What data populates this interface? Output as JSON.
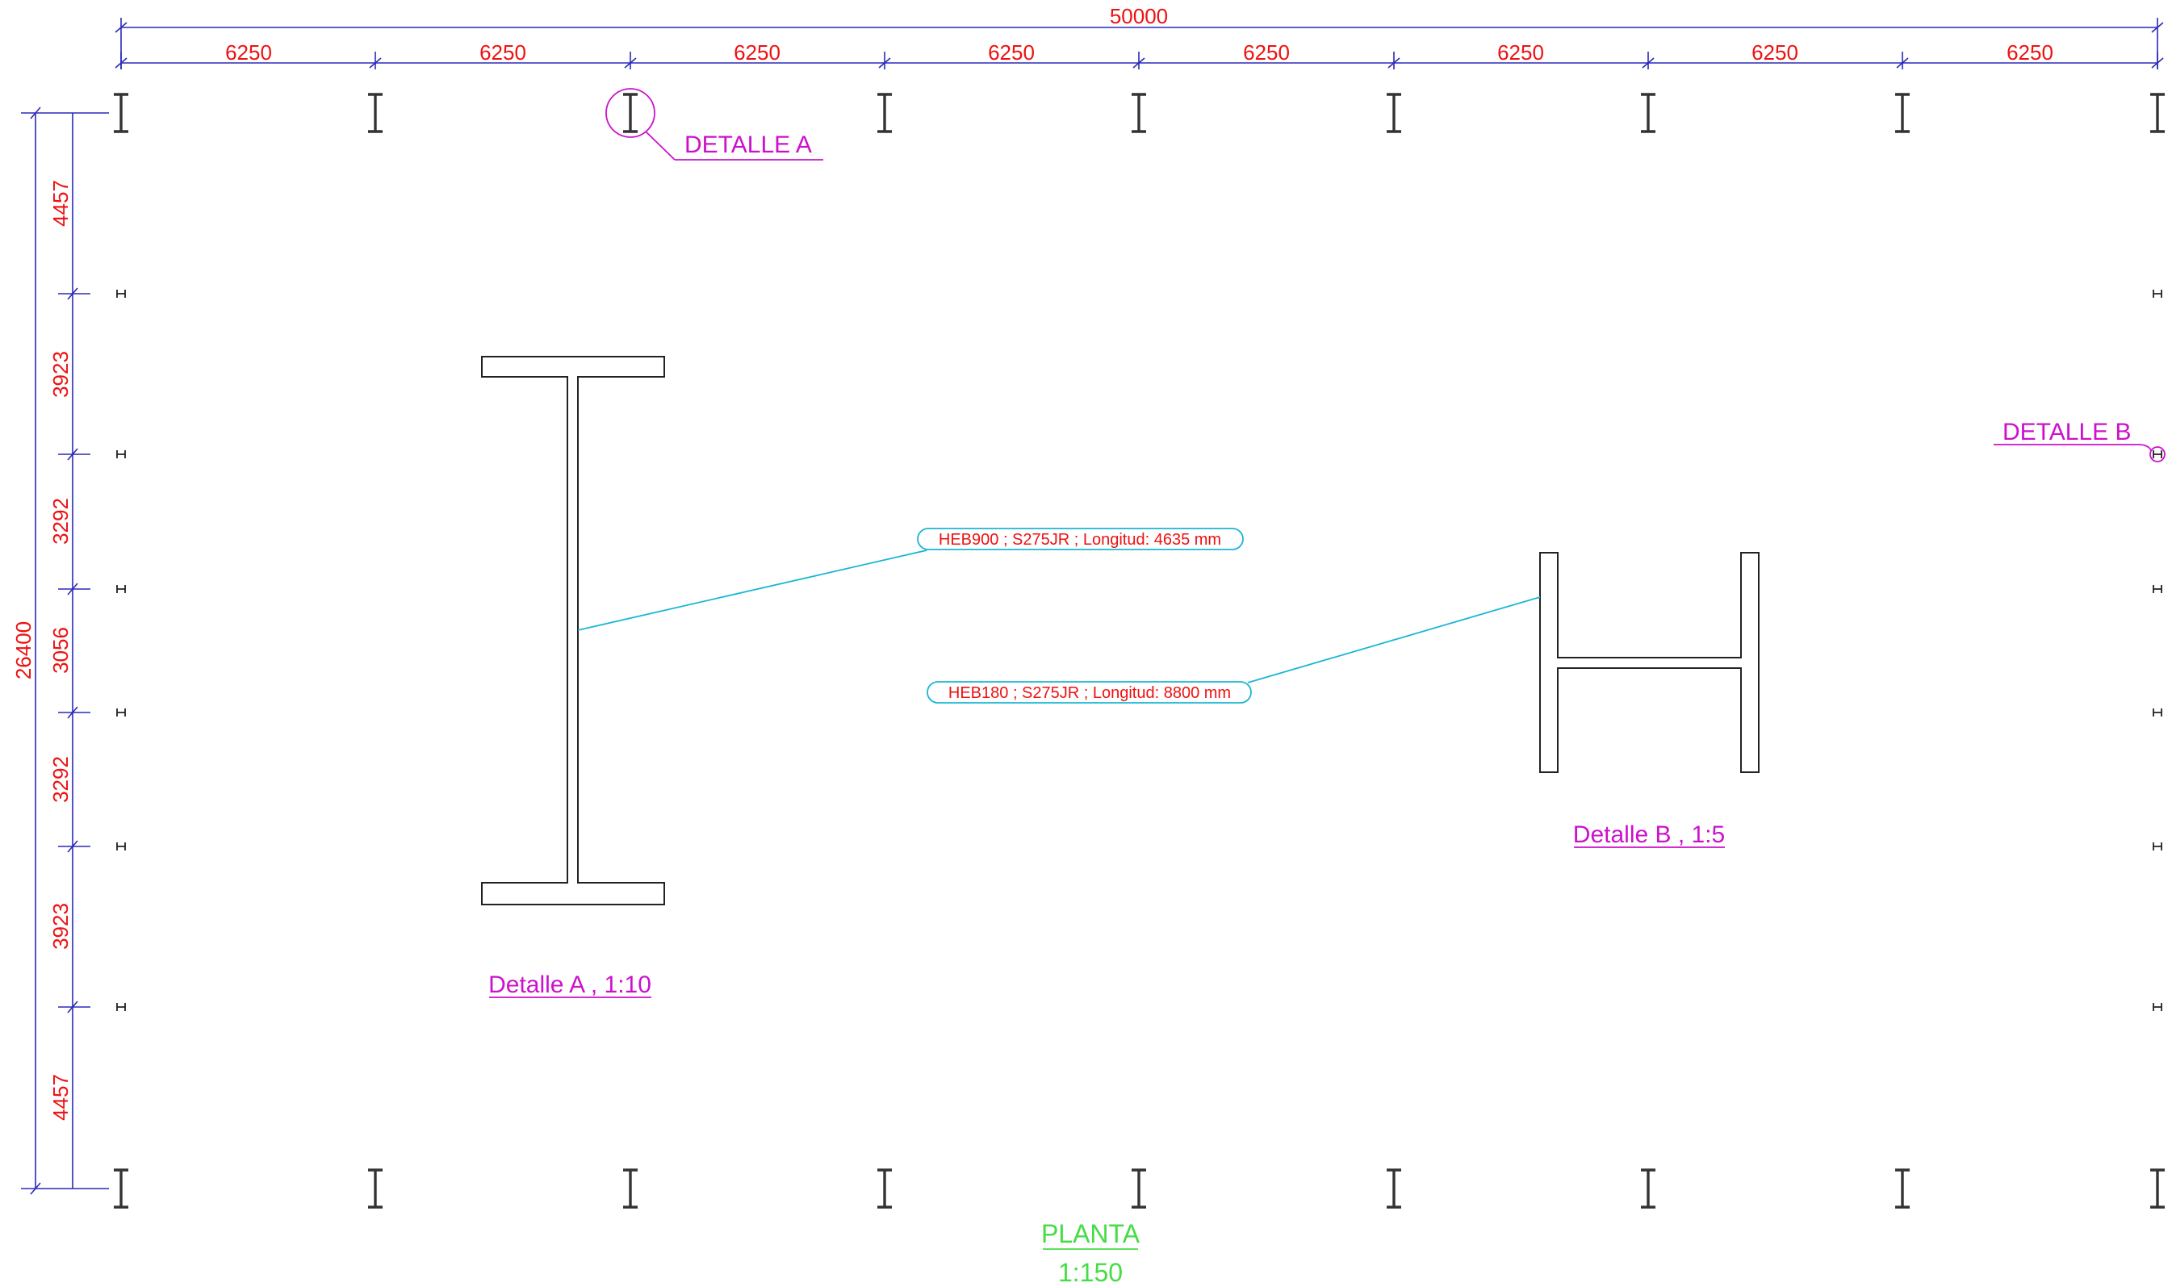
{
  "top_dimensions": {
    "overall": "50000",
    "segments": [
      "6250",
      "6250",
      "6250",
      "6250",
      "6250",
      "6250",
      "6250",
      "6250"
    ]
  },
  "left_dimensions": {
    "overall": "26400",
    "segments": [
      "4457",
      "3923",
      "3292",
      "3056",
      "3292",
      "3923",
      "4457"
    ]
  },
  "detail_callouts": {
    "a": "DETALLE A",
    "b": "DETALLE B"
  },
  "details": {
    "a_title": "Detalle A , 1:10",
    "b_title": "Detalle B , 1:5"
  },
  "labels": {
    "heb900": "HEB900 ;  S275JR ;  Longitud:  4635 mm",
    "heb180": "HEB180 ;  S275JR ;  Longitud:  8800 mm"
  },
  "view": {
    "title": "PLANTA",
    "scale": "1:150"
  },
  "colors": {
    "dimension_line": "#2a2ab8",
    "dimension_text": "#ee1111",
    "callout": "#cc11cc",
    "leader": "#1ab6d4",
    "view_title": "#44dd44"
  }
}
